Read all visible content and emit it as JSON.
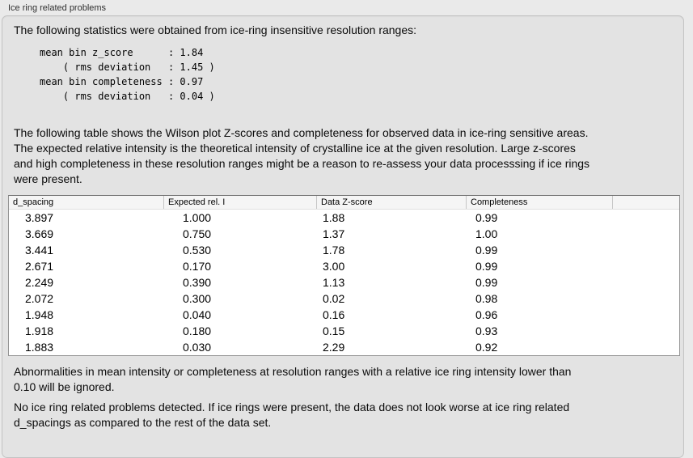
{
  "panel": {
    "title": "Ice ring related problems"
  },
  "stats_section": {
    "intro": "The following statistics were obtained from ice-ring insensitive resolution ranges:",
    "stats_block": "mean bin z_score      : 1.84\n    ( rms deviation   : 1.45 )\nmean bin completeness : 0.97\n    ( rms deviation   : 0.04 )"
  },
  "table_section": {
    "description": "The following table shows the Wilson plot Z-scores and completeness for observed data in ice-ring sensitive areas.\nThe expected relative intensity is the theoretical intensity of crystalline ice at the given resolution. Large z-scores\nand high completeness in these resolution ranges might be a reason to re-assess your data processsing if ice rings\nwere present.",
    "table": {
      "columns": [
        "d_spacing",
        "Expected rel. I",
        "Data Z-score",
        "Completeness"
      ],
      "rows": [
        [
          "3.897",
          "1.000",
          "1.88",
          "0.99"
        ],
        [
          "3.669",
          "0.750",
          "1.37",
          "1.00"
        ],
        [
          "3.441",
          "0.530",
          "1.78",
          "0.99"
        ],
        [
          "2.671",
          "0.170",
          "3.00",
          "0.99"
        ],
        [
          "2.249",
          "0.390",
          "1.13",
          "0.99"
        ],
        [
          "2.072",
          "0.300",
          "0.02",
          "0.98"
        ],
        [
          "1.948",
          "0.040",
          "0.16",
          "0.96"
        ],
        [
          "1.918",
          "0.180",
          "0.15",
          "0.93"
        ],
        [
          "1.883",
          "0.030",
          "2.29",
          "0.92"
        ]
      ]
    }
  },
  "notes": {
    "ignore_threshold": "Abnormalities in mean intensity or completeness at resolution ranges with a relative ice ring intensity lower than\n0.10 will be ignored.",
    "conclusion": "No ice ring related problems detected. If ice rings were present, the data does not look worse at ice ring related\nd_spacings as compared to the rest of the data set."
  },
  "colors": {
    "page_bg": "#eaeaea",
    "panel_bg": "#e3e3e3",
    "table_bg": "#ffffff",
    "table_header_bg": "#f5f5f5",
    "text": "#0b0b0b"
  }
}
